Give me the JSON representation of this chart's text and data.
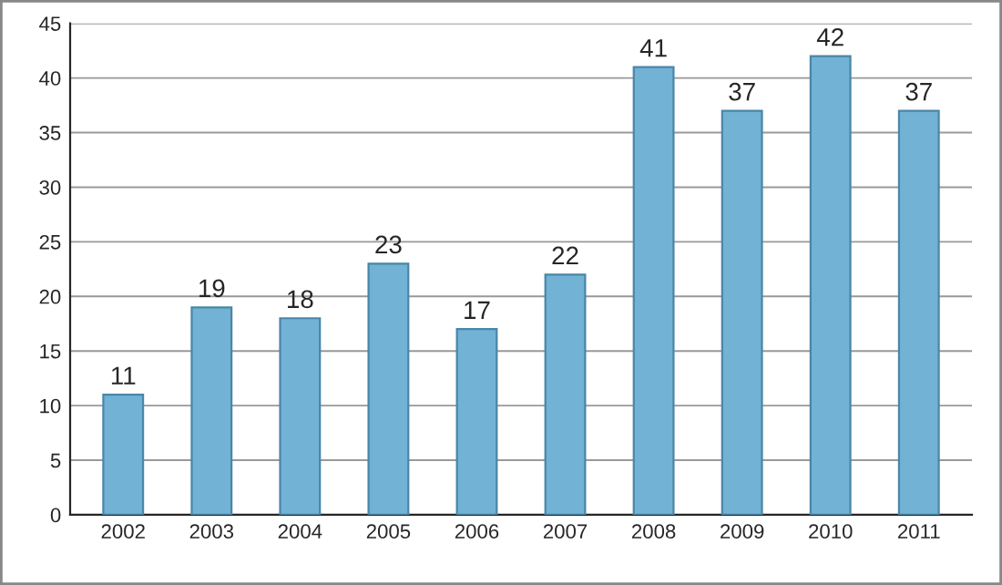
{
  "chart_data": {
    "type": "bar",
    "categories": [
      "2002",
      "2003",
      "2004",
      "2005",
      "2006",
      "2007",
      "2008",
      "2009",
      "2010",
      "2011"
    ],
    "values": [
      11,
      19,
      18,
      23,
      17,
      22,
      41,
      37,
      42,
      37
    ],
    "color": "#72b2d4",
    "ylim": [
      0,
      45
    ],
    "yticks": [
      0,
      5,
      10,
      15,
      20,
      25,
      30,
      35,
      40,
      45
    ],
    "grid": "y",
    "data_labels": true
  }
}
